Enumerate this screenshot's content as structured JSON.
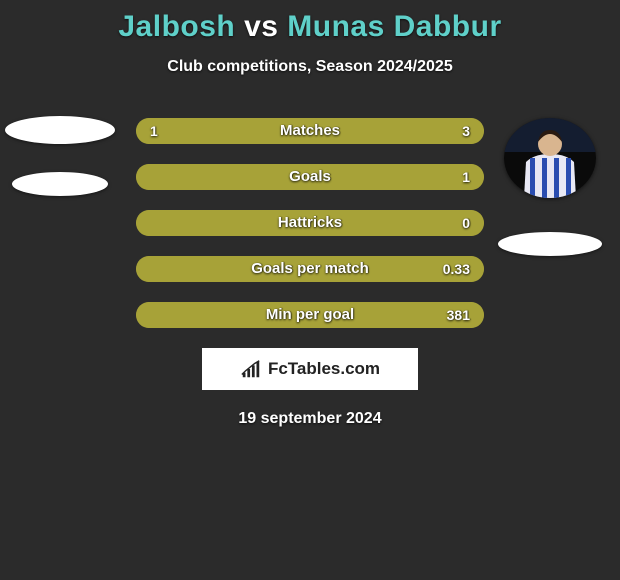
{
  "title_left": "Jalbosh",
  "title_vs": " vs ",
  "title_right": "Munas Dabbur",
  "title_color_left": "#5fd0c9",
  "title_color_right": "#5fd0c9",
  "title_vs_color": "#ffffff",
  "subtitle": "Club competitions, Season 2024/2025",
  "background_color": "#2b2b2b",
  "bars": [
    {
      "label": "Matches",
      "left": "1",
      "right": "3",
      "bar_fill_color": "#a7a238",
      "bar_bg_color": "#a7a238",
      "fill_pct": 100
    },
    {
      "label": "Goals",
      "left": "",
      "right": "1",
      "bar_fill_color": "#a7a238",
      "bar_bg_color": "#a7a238",
      "fill_pct": 100
    },
    {
      "label": "Hattricks",
      "left": "",
      "right": "0",
      "bar_fill_color": "#a7a238",
      "bar_bg_color": "#a7a238",
      "fill_pct": 100
    },
    {
      "label": "Goals per match",
      "left": "",
      "right": "0.33",
      "bar_fill_color": "#a7a238",
      "bar_bg_color": "#a7a238",
      "fill_pct": 100
    },
    {
      "label": "Min per goal",
      "left": "",
      "right": "381",
      "bar_fill_color": "#a7a238",
      "bar_bg_color": "#a7a238",
      "fill_pct": 100
    }
  ],
  "left_avatar": {
    "show_image": false
  },
  "right_avatar": {
    "show_image": true,
    "bg_color": "#0a0a0a",
    "shirt_color": "#e8e8f4",
    "stripe_color": "#2a4db0"
  },
  "badge": {
    "text": "FcTables.com",
    "icon_color": "#222222"
  },
  "date": "19 september 2024"
}
